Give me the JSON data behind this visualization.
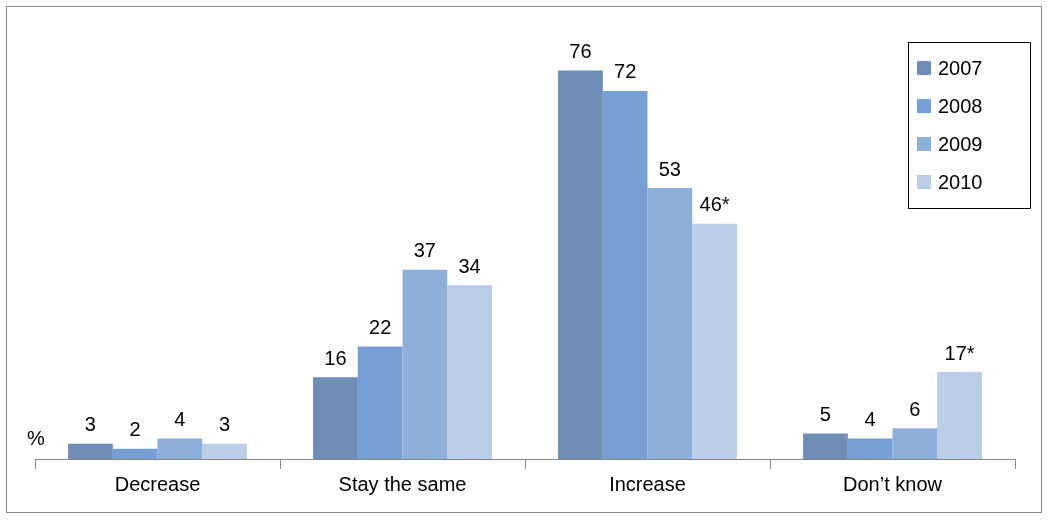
{
  "chart_data": {
    "type": "bar",
    "ylabel": "%",
    "categories": [
      "Decrease",
      "Stay the same",
      "Increase",
      "Don’t know"
    ],
    "series": [
      {
        "name": "2007",
        "color": "#6f8db5",
        "values": [
          3,
          16,
          76,
          5
        ],
        "value_labels": [
          "3",
          "16",
          "76",
          "5"
        ]
      },
      {
        "name": "2008",
        "color": "#779fd3",
        "values": [
          2,
          22,
          72,
          4
        ],
        "value_labels": [
          "2",
          "22",
          "72",
          "4"
        ]
      },
      {
        "name": "2009",
        "color": "#8eafda",
        "values": [
          4,
          37,
          53,
          6
        ],
        "value_labels": [
          "4",
          "37",
          "53",
          "6"
        ]
      },
      {
        "name": "2010",
        "color": "#bccde8",
        "values": [
          3,
          34,
          46,
          17
        ],
        "value_labels": [
          "3",
          "34",
          "46*",
          "17*"
        ]
      }
    ],
    "legend": "top right",
    "tick_labels": "x",
    "grid": false
  }
}
